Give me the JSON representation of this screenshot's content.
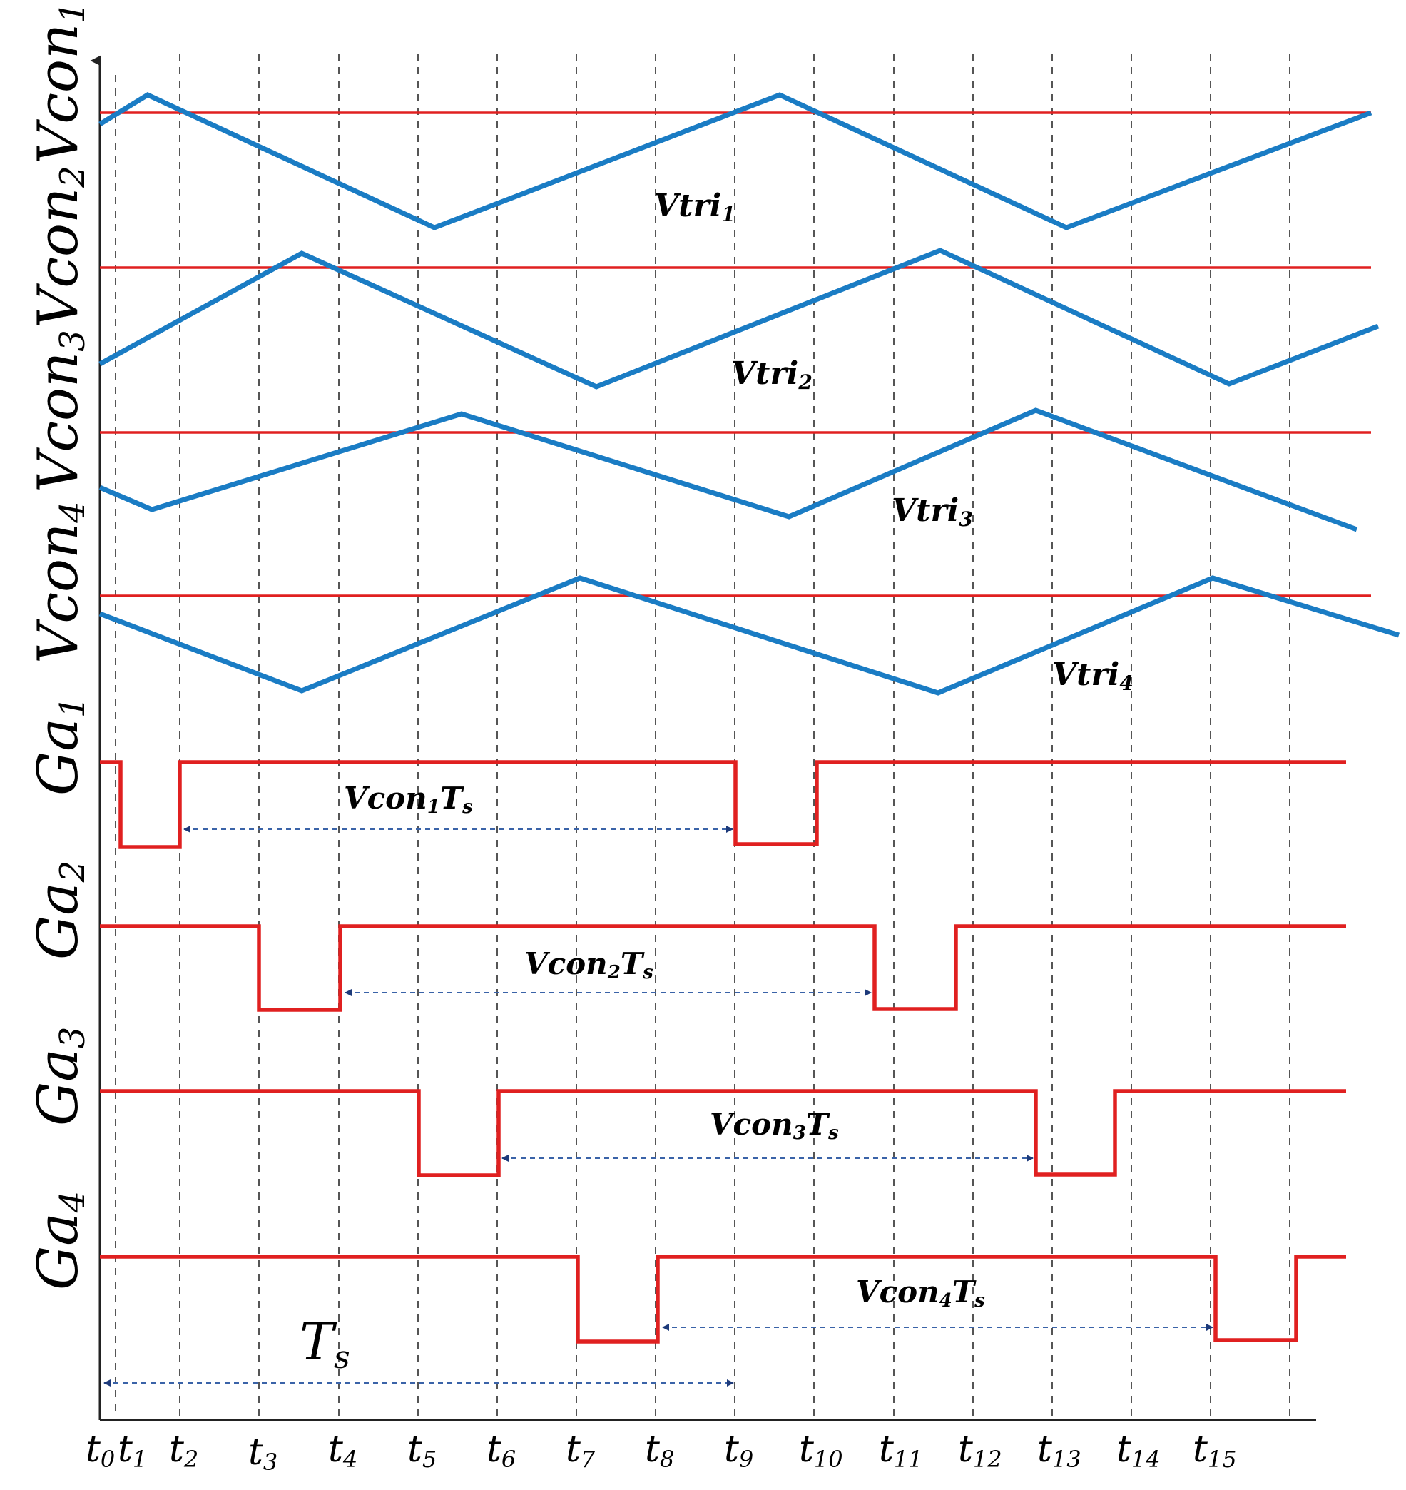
{
  "y_labels": {
    "vcon1": {
      "base": "Vcon",
      "sub": "1"
    },
    "vcon2": {
      "base": "Vcon",
      "sub": "2"
    },
    "vcon3": {
      "base": "Vcon",
      "sub": "3"
    },
    "vcon4": {
      "base": "Vcon",
      "sub": "4"
    },
    "ga1": {
      "base": "Ga",
      "sub": "1"
    },
    "ga2": {
      "base": "Ga",
      "sub": "2"
    },
    "ga3": {
      "base": "Ga",
      "sub": "3"
    },
    "ga4": {
      "base": "Ga",
      "sub": "4"
    }
  },
  "carrier_labels": {
    "vtri1": {
      "base": "Vtri",
      "sub": "1"
    },
    "vtri2": {
      "base": "Vtri",
      "sub": "2"
    },
    "vtri3": {
      "base": "Vtri",
      "sub": "3"
    },
    "vtri4": {
      "base": "Vtri",
      "sub": "4"
    }
  },
  "duty_labels": {
    "d1": {
      "a": "Vcon",
      "sub1": "1",
      "b": "T",
      "sub2": "s"
    },
    "d2": {
      "a": "Vcon",
      "sub1": "2",
      "b": "T",
      "sub2": "s"
    },
    "d3": {
      "a": "Vcon",
      "sub1": "3",
      "b": "T",
      "sub2": "s"
    },
    "d4": {
      "a": "Vcon",
      "sub1": "4",
      "b": "T",
      "sub2": "s"
    }
  },
  "period_label": {
    "base": "T",
    "sub": "s"
  },
  "time_ticks": [
    {
      "base": "t",
      "sub": "0"
    },
    {
      "base": "t",
      "sub": "1"
    },
    {
      "base": "t",
      "sub": "2"
    },
    {
      "base": "t",
      "sub": "3"
    },
    {
      "base": "t",
      "sub": "4"
    },
    {
      "base": "t",
      "sub": "5"
    },
    {
      "base": "t",
      "sub": "6"
    },
    {
      "base": "t",
      "sub": "7"
    },
    {
      "base": "t",
      "sub": "8"
    },
    {
      "base": "t",
      "sub": "9"
    },
    {
      "base": "t",
      "sub": "10"
    },
    {
      "base": "t",
      "sub": "11"
    },
    {
      "base": "t",
      "sub": "12"
    },
    {
      "base": "t",
      "sub": "13"
    },
    {
      "base": "t",
      "sub": "14"
    },
    {
      "base": "t",
      "sub": "15"
    }
  ],
  "colors": {
    "carrier": "#1a7cc4",
    "control": "#e02020",
    "gate": "#e02020"
  }
}
